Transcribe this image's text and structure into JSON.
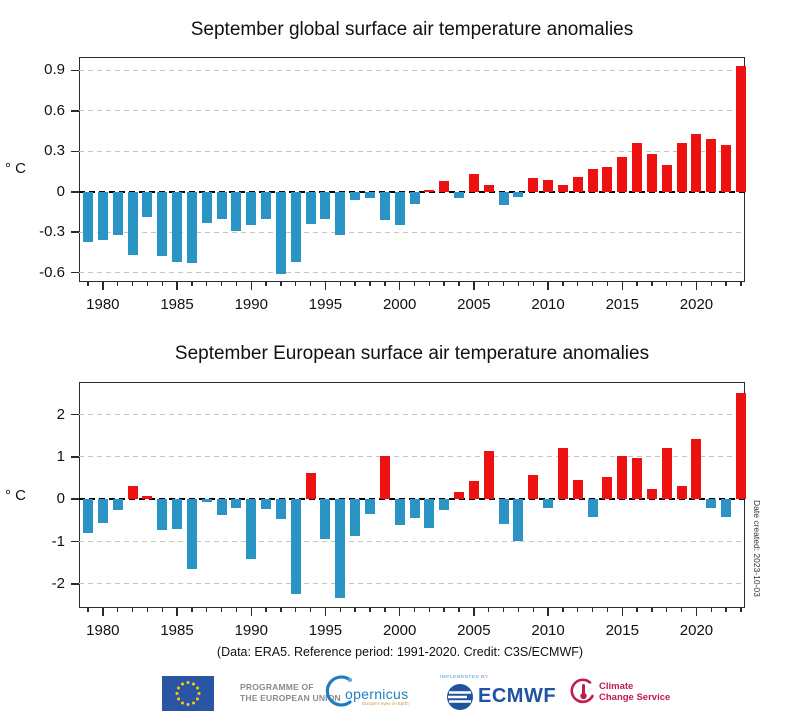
{
  "figure": {
    "caption": "(Data: ERA5.  Reference period: 1991-2020.  Credit: C3S/ECMWF)",
    "date_note": "Date created: 2023-10-03"
  },
  "charts": [
    {
      "title": "September global surface air temperature anomalies",
      "ylabel": "° C",
      "chart_data": {
        "type": "bar",
        "x": [
          1979,
          1980,
          1981,
          1982,
          1983,
          1984,
          1985,
          1986,
          1987,
          1988,
          1989,
          1990,
          1991,
          1992,
          1993,
          1994,
          1995,
          1996,
          1997,
          1998,
          1999,
          2000,
          2001,
          2002,
          2003,
          2004,
          2005,
          2006,
          2007,
          2008,
          2009,
          2010,
          2011,
          2012,
          2013,
          2014,
          2015,
          2016,
          2017,
          2018,
          2019,
          2020,
          2021,
          2022,
          2023
        ],
        "values": [
          -0.37,
          -0.36,
          -0.32,
          -0.47,
          -0.19,
          -0.48,
          -0.52,
          -0.53,
          -0.23,
          -0.2,
          -0.29,
          -0.25,
          -0.2,
          -0.61,
          -0.52,
          -0.24,
          -0.2,
          -0.32,
          -0.06,
          -0.05,
          -0.21,
          -0.25,
          -0.09,
          0.01,
          0.08,
          -0.05,
          0.13,
          0.05,
          -0.1,
          -0.04,
          0.1,
          0.09,
          0.05,
          0.11,
          0.17,
          0.18,
          0.26,
          0.36,
          0.28,
          0.2,
          0.36,
          0.43,
          0.39,
          0.35,
          0.93
        ],
        "ylim": [
          -0.67,
          1.0
        ],
        "yticks": [
          0.9,
          0.6,
          0.3,
          0,
          -0.3,
          -0.6
        ],
        "ytick_labels": [
          "0.9",
          "0.6",
          "0.3",
          "0",
          "-0.3",
          "-0.6"
        ],
        "xticks": [
          1980,
          1985,
          1990,
          1995,
          2000,
          2005,
          2010,
          2015,
          2020
        ],
        "grid": "horizontal-dashed",
        "legend": "none",
        "color_positive": "#ee1111",
        "color_negative": "#2a94c5"
      }
    },
    {
      "title": "September European surface air temperature anomalies",
      "ylabel": "° C",
      "chart_data": {
        "type": "bar",
        "x": [
          1979,
          1980,
          1981,
          1982,
          1983,
          1984,
          1985,
          1986,
          1987,
          1988,
          1989,
          1990,
          1991,
          1992,
          1993,
          1994,
          1995,
          1996,
          1997,
          1998,
          1999,
          2000,
          2001,
          2002,
          2003,
          2004,
          2005,
          2006,
          2007,
          2008,
          2009,
          2010,
          2011,
          2012,
          2013,
          2014,
          2015,
          2016,
          2017,
          2018,
          2019,
          2020,
          2021,
          2022,
          2023
        ],
        "values": [
          -0.8,
          -0.57,
          -0.26,
          0.31,
          0.08,
          -0.72,
          -0.7,
          -1.66,
          -0.06,
          -0.37,
          -0.21,
          -1.41,
          -0.23,
          -0.47,
          -2.24,
          0.61,
          -0.94,
          -2.34,
          -0.88,
          -0.34,
          1.01,
          -0.61,
          -0.45,
          -0.69,
          -0.26,
          0.18,
          0.43,
          1.13,
          -0.59,
          -0.99,
          0.57,
          -0.2,
          1.22,
          0.46,
          -0.42,
          0.53,
          1.02,
          0.98,
          0.24,
          1.22,
          0.32,
          1.42,
          -0.21,
          -0.41,
          2.51
        ],
        "ylim": [
          -2.57,
          2.77
        ],
        "yticks": [
          2,
          1,
          0,
          -1,
          -2
        ],
        "ytick_labels": [
          "2",
          "1",
          "0",
          "-1",
          "-2"
        ],
        "xticks": [
          1980,
          1985,
          1990,
          1995,
          2000,
          2005,
          2010,
          2015,
          2020
        ],
        "grid": "horizontal-dashed",
        "legend": "none",
        "color_positive": "#ee1111",
        "color_negative": "#2a94c5"
      }
    }
  ],
  "footer": {
    "eu_programme": {
      "line1": "PROGRAMME OF",
      "line2": "THE EUROPEAN UNION"
    },
    "copernicus": {
      "name": "opernicus",
      "tagline": "Europe's eyes on Earth"
    },
    "ecmwf": {
      "implemented_by": "IMPLEMENTED BY",
      "name": "ECMWF"
    },
    "climate_change_service": {
      "line1": "Climate",
      "line2": "Change Service"
    }
  },
  "colors": {
    "anomaly_positive": "#ee1111",
    "anomaly_negative": "#2a94c5",
    "eu_flag_blue": "#2a55a5",
    "eu_star_yellow": "#ffcc00",
    "ecmwf_blue": "#2053a0",
    "copernicus_blue": "#1f7ec2",
    "c3s_crimson": "#c41a4b"
  }
}
